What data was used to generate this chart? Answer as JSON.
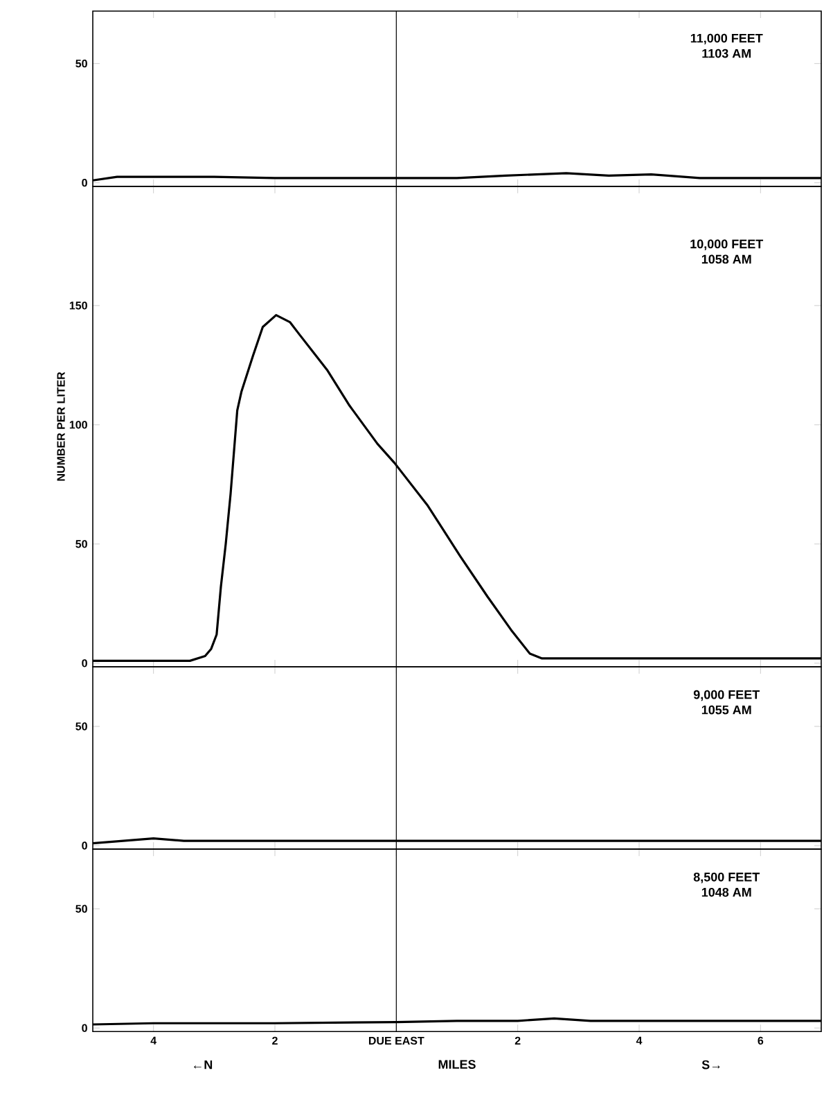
{
  "chart_data": [
    {
      "type": "line",
      "title": "11,000 FEET",
      "subtitle": "1103 AM",
      "xlim": [
        -5,
        7
      ],
      "ylim": [
        -1.5,
        72
      ],
      "yticks": [
        0,
        50
      ],
      "xticks": [
        {
          "value": -4,
          "label": null
        },
        {
          "value": -2,
          "label": null
        },
        {
          "value": 0,
          "label": null
        },
        {
          "value": 2,
          "label": null
        },
        {
          "value": 4,
          "label": null
        },
        {
          "value": 6,
          "label": null
        }
      ],
      "tick_labels": "y",
      "ref_lines": [
        {
          "axis": "x",
          "value": 0
        }
      ],
      "x": [
        -5,
        -4.6,
        -4,
        -3,
        -2,
        -1,
        0,
        1,
        1.8,
        2.8,
        3.5,
        4.2,
        5,
        6,
        7
      ],
      "series": [
        {
          "color": "#000000",
          "values": [
            1,
            2.5,
            2.5,
            2.5,
            2,
            2,
            2,
            2,
            3,
            4,
            3,
            3.5,
            2,
            2,
            2
          ]
        }
      ]
    },
    {
      "type": "line",
      "title": "10,000 FEET",
      "subtitle": "1058 AM",
      "ylabel": "NUMBER PER LITER",
      "xlim": [
        -5,
        7
      ],
      "ylim": [
        -1.5,
        200
      ],
      "yticks": [
        0,
        50,
        100,
        150
      ],
      "xticks": [
        {
          "value": -4,
          "label": null
        },
        {
          "value": -2,
          "label": null
        },
        {
          "value": 0,
          "label": null
        },
        {
          "value": 2,
          "label": null
        },
        {
          "value": 4,
          "label": null
        },
        {
          "value": 6,
          "label": null
        }
      ],
      "tick_labels": "y",
      "ref_lines": [
        {
          "axis": "x",
          "value": 0
        }
      ],
      "x": [
        -5,
        -4,
        -3.4,
        -3.15,
        -3.05,
        -2.96,
        -2.89,
        -2.81,
        -2.73,
        -2.62,
        -2.55,
        -2.36,
        -2.2,
        -1.98,
        -1.75,
        -1.6,
        -1.14,
        -0.77,
        -0.31,
        -0.03,
        0.52,
        1.05,
        1.5,
        1.89,
        2.2,
        2.4,
        3,
        4,
        5,
        6,
        7
      ],
      "series": [
        {
          "color": "#000000",
          "values": [
            1,
            1,
            1,
            3,
            6,
            12,
            32,
            50,
            71,
            106,
            114,
            129,
            141,
            146,
            143,
            138,
            123,
            108,
            92,
            84,
            66,
            45,
            28,
            14,
            4,
            2,
            2,
            2,
            2,
            2,
            2
          ]
        }
      ]
    },
    {
      "type": "line",
      "title": "9,000 FEET",
      "subtitle": "1055 AM",
      "xlim": [
        -5,
        7
      ],
      "ylim": [
        -1.5,
        75
      ],
      "yticks": [
        0,
        50
      ],
      "xticks": [
        {
          "value": -4,
          "label": null
        },
        {
          "value": -2,
          "label": null
        },
        {
          "value": 0,
          "label": null
        },
        {
          "value": 2,
          "label": null
        },
        {
          "value": 4,
          "label": null
        },
        {
          "value": 6,
          "label": null
        }
      ],
      "tick_labels": "y",
      "ref_lines": [
        {
          "axis": "x",
          "value": 0
        }
      ],
      "x": [
        -5,
        -4.5,
        -4,
        -3.5,
        -2,
        0,
        2,
        4,
        6,
        7
      ],
      "series": [
        {
          "color": "#000000",
          "values": [
            1,
            2,
            3,
            2,
            2,
            2,
            2,
            2,
            2,
            2
          ]
        }
      ]
    },
    {
      "type": "line",
      "title": "8,500 FEET",
      "subtitle": "1048 AM",
      "xlabel": "MILES",
      "annotations": [
        "←N",
        "S→"
      ],
      "xlim": [
        -5,
        7
      ],
      "ylim": [
        -1.5,
        75
      ],
      "yticks": [
        0,
        50
      ],
      "xticks": [
        {
          "value": -4,
          "label": "4"
        },
        {
          "value": -2,
          "label": "2"
        },
        {
          "value": 0,
          "label": "DUE EAST"
        },
        {
          "value": 2,
          "label": "2"
        },
        {
          "value": 4,
          "label": "4"
        },
        {
          "value": 6,
          "label": "6"
        }
      ],
      "ref_lines": [
        {
          "axis": "x",
          "value": 0
        }
      ],
      "x": [
        -5,
        -4,
        -2,
        0,
        1,
        2,
        2.6,
        3.2,
        4,
        5,
        6,
        7
      ],
      "series": [
        {
          "color": "#000000",
          "values": [
            1.5,
            2,
            2,
            2.5,
            3,
            3,
            4,
            3,
            3,
            3,
            3,
            3
          ]
        }
      ]
    }
  ]
}
